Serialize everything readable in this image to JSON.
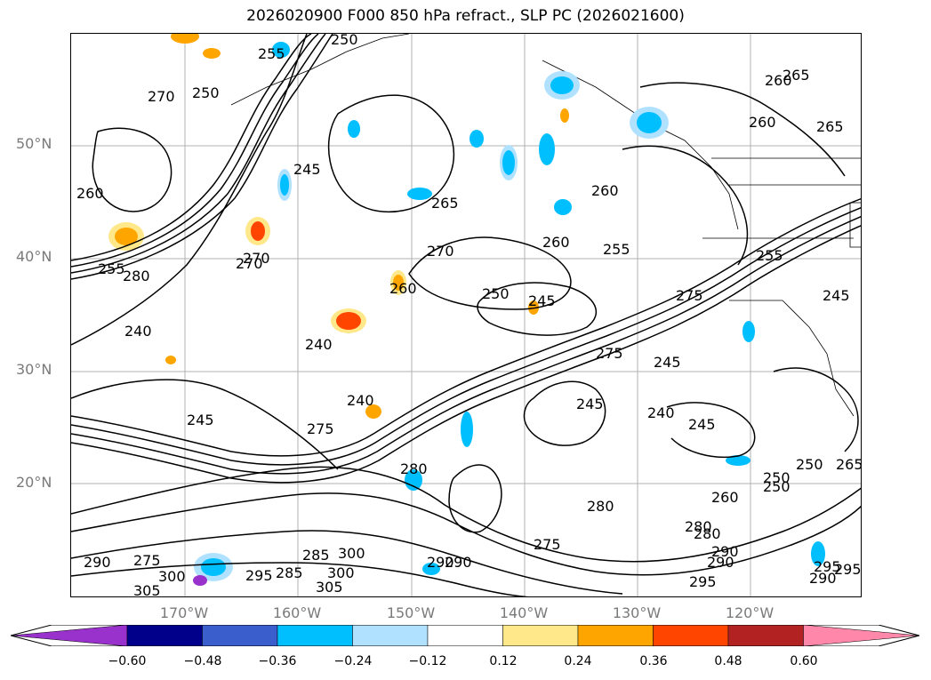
{
  "title": "2026020900 F000 850 hPa refract., SLP PC (2026021600)",
  "lat_labels": [
    "50°N",
    "40°N",
    "30°N",
    "20°N"
  ],
  "lon_labels": [
    "170°W",
    "160°W",
    "150°W",
    "140°W",
    "130°W",
    "120°W"
  ],
  "colorbar": {
    "ticks": [
      "−0.60",
      "−0.48",
      "−0.36",
      "−0.24",
      "−0.12",
      "0.12",
      "0.24",
      "0.36",
      "0.48",
      "0.60"
    ],
    "colors": [
      "#9932cc",
      "#00008b",
      "#3a5fcd",
      "#00bfff",
      "#b0e2ff",
      "#ffffff",
      "#ffe88a",
      "#ffa500",
      "#ff4500",
      "#b22222",
      "#ff88aa"
    ]
  },
  "contour_labels": [
    "255",
    "250",
    "250",
    "270",
    "260",
    "280",
    "245",
    "265",
    "240",
    "270",
    "260",
    "255",
    "250",
    "245",
    "270",
    "260",
    "245",
    "240",
    "275",
    "265",
    "240",
    "245",
    "245",
    "240",
    "245",
    "275",
    "280",
    "275",
    "250",
    "255",
    "260",
    "265",
    "280",
    "285",
    "280",
    "290",
    "275",
    "290",
    "295",
    "300",
    "300",
    "295",
    "285",
    "290",
    "305",
    "300",
    "290",
    "305",
    "260",
    "250",
    "295",
    "290",
    "295",
    "255",
    "265",
    "260",
    "250",
    "270",
    "275",
    "280",
    "260",
    "290",
    "245"
  ]
}
